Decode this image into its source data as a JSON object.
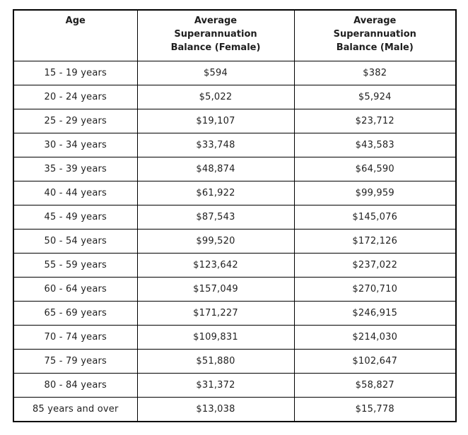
{
  "colors": {
    "background": "#ffffff",
    "border": "#000000",
    "text": "#1f1f1f"
  },
  "chart_data": {
    "type": "table",
    "title": "",
    "columns": [
      "Age",
      "Average\nSuperannuation\nBalance (Female)",
      "Average\nSuperannuation\nBalance (Male)"
    ],
    "categories": [
      "15 - 19 years",
      "20 - 24 years",
      "25 - 29 years",
      "30 - 34 years",
      "35 - 39 years",
      "40 - 44 years",
      "45 - 49 years",
      "50 - 54 years",
      "55 - 59 years",
      "60 - 64 years",
      "65 - 69 years",
      "70 - 74 years",
      "75 - 79 years",
      "80 - 84 years",
      "85 years and over"
    ],
    "series": [
      {
        "name": "Average Superannuation Balance (Female)",
        "values": [
          594,
          5022,
          19107,
          33748,
          48874,
          61922,
          87543,
          99520,
          123642,
          157049,
          171227,
          109831,
          51880,
          31372,
          13038
        ]
      },
      {
        "name": "Average Superannuation Balance (Male)",
        "values": [
          382,
          5924,
          23712,
          43583,
          64590,
          99959,
          145076,
          172126,
          237022,
          270710,
          246915,
          214030,
          102647,
          58827,
          15778
        ]
      }
    ],
    "rows": [
      {
        "age": "15 - 19 years",
        "female": "$594",
        "male": "$382"
      },
      {
        "age": "20 - 24 years",
        "female": "$5,022",
        "male": "$5,924"
      },
      {
        "age": "25 - 29 years",
        "female": "$19,107",
        "male": "$23,712"
      },
      {
        "age": "30 - 34 years",
        "female": "$33,748",
        "male": "$43,583"
      },
      {
        "age": "35 - 39 years",
        "female": "$48,874",
        "male": "$64,590"
      },
      {
        "age": "40 - 44 years",
        "female": "$61,922",
        "male": "$99,959"
      },
      {
        "age": "45 - 49 years",
        "female": "$87,543",
        "male": "$145,076"
      },
      {
        "age": "50 - 54 years",
        "female": "$99,520",
        "male": "$172,126"
      },
      {
        "age": "55 - 59 years",
        "female": "$123,642",
        "male": "$237,022"
      },
      {
        "age": "60 - 64 years",
        "female": "$157,049",
        "male": "$270,710"
      },
      {
        "age": "65 - 69 years",
        "female": "$171,227",
        "male": "$246,915"
      },
      {
        "age": "70 - 74 years",
        "female": "$109,831",
        "male": "$214,030"
      },
      {
        "age": "75 - 79 years",
        "female": "$51,880",
        "male": "$102,647"
      },
      {
        "age": "80 - 84 years",
        "female": "$31,372",
        "male": "$58,827"
      },
      {
        "age": "85 years and over",
        "female": "$13,038",
        "male": "$15,778"
      }
    ]
  }
}
